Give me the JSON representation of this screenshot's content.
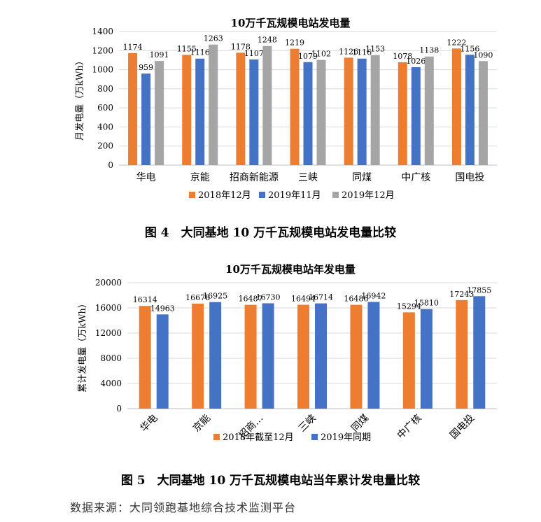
{
  "captions": {
    "fig4": "图 4　大同基地 10 万千瓦规模电站发电量比较",
    "fig5": "图 5　大同基地 10 万千瓦规模电站当年累计发电量比较"
  },
  "source": "数据来源：大同领跑基地综合技术监测平台",
  "colors": {
    "orange": "#ED7D31",
    "blue": "#4472C4",
    "gray": "#A5A5A5"
  },
  "chart_data": [
    {
      "type": "bar",
      "title": "10万千瓦规模电站发电量",
      "ylabel": "月发电量（万kWh）",
      "xlabel": "",
      "categories": [
        "华电",
        "京能",
        "招商新能源",
        "三峡",
        "同煤",
        "中广核",
        "国电投"
      ],
      "ylim": [
        0,
        1400
      ],
      "yticks": [
        0,
        200,
        400,
        600,
        800,
        1000,
        1200,
        1400
      ],
      "grid": true,
      "legend": "bottom",
      "series": [
        {
          "name": "2018年12月",
          "color": "#ED7D31",
          "values": [
            1174,
            1155,
            1178,
            1219,
            1126,
            1078,
            1222
          ]
        },
        {
          "name": "2019年11月",
          "color": "#4472C4",
          "values": [
            959,
            1116,
            1107,
            1079,
            1116,
            1026,
            1156
          ]
        },
        {
          "name": "2019年12月",
          "color": "#A5A5A5",
          "values": [
            1091,
            1263,
            1248,
            1102,
            1153,
            1138,
            1090
          ]
        }
      ]
    },
    {
      "type": "bar",
      "title": "10万千瓦规模电站年发电量",
      "ylabel": "累计发电量（万kWh）",
      "xlabel": "",
      "categories": [
        "华电",
        "京能",
        "招商…",
        "三峡",
        "同煤",
        "中广核",
        "国电投"
      ],
      "ylim": [
        0,
        20000
      ],
      "yticks": [
        0,
        4000,
        8000,
        12000,
        16000,
        20000
      ],
      "grid": true,
      "legend": "bottom",
      "series": [
        {
          "name": "2018年截至12月",
          "color": "#ED7D31",
          "values": [
            16314,
            16678,
            16487,
            16494,
            16486,
            15294,
            17243
          ]
        },
        {
          "name": "2019年同期",
          "color": "#4472C4",
          "values": [
            14963,
            16925,
            16730,
            16714,
            16942,
            15810,
            17855
          ]
        }
      ]
    }
  ]
}
